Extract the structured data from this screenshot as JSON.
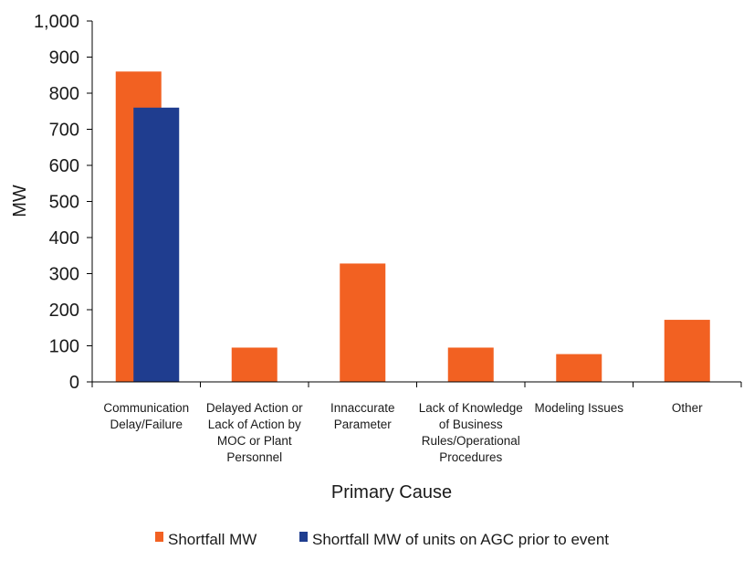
{
  "chart_data": {
    "type": "bar",
    "title": "",
    "xlabel": "Primary Cause",
    "ylabel": "MW",
    "ylim": [
      0,
      1000
    ],
    "yticks": [
      0,
      100,
      200,
      300,
      400,
      500,
      600,
      700,
      800,
      900,
      1000
    ],
    "ytick_labels": [
      "0",
      "100",
      "200",
      "300",
      "400",
      "500",
      "600",
      "700",
      "800",
      "900",
      "1,000"
    ],
    "categories": [
      [
        "Communication",
        "Delay/Failure"
      ],
      [
        "Delayed Action or",
        "Lack of Action by",
        "MOC or Plant",
        "Personnel"
      ],
      [
        "Innaccurate",
        "Parameter"
      ],
      [
        "Lack of Knowledge",
        "of Business",
        "Rules/Operational",
        "Procedures"
      ],
      [
        "Modeling Issues"
      ],
      [
        "Other"
      ]
    ],
    "series": [
      {
        "name": "Shortfall MW",
        "color": "#f26122",
        "values": [
          860,
          95,
          328,
          95,
          77,
          172
        ]
      },
      {
        "name": "Shortfall MW of units on AGC prior to event",
        "color": "#1f3d8f",
        "values": [
          760,
          null,
          null,
          null,
          null,
          null
        ]
      }
    ],
    "grid": false,
    "legend_position": "bottom"
  }
}
